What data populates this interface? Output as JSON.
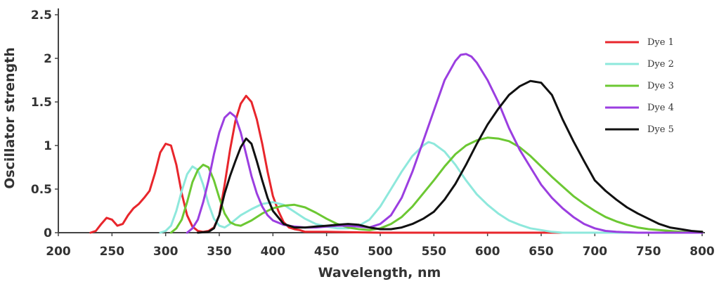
{
  "chart_data": {
    "type": "line",
    "title": "",
    "xlabel": "Wavelength, nm",
    "ylabel": "Oscillator strength",
    "xlim": [
      200,
      800
    ],
    "ylim": [
      0,
      2.5
    ],
    "x_ticks": [
      "200",
      "250",
      "300",
      "350",
      "400",
      "450",
      "500",
      "550",
      "600",
      "650",
      "700",
      "750",
      "800"
    ],
    "y_ticks": [
      "0",
      "0.5",
      "1",
      "1.5",
      "2",
      "2.5"
    ],
    "grid": false,
    "legend_position": "top-right",
    "series": [
      {
        "name": "Dye 1",
        "color": "#e8262c",
        "points": [
          [
            230,
            0.0
          ],
          [
            235,
            0.02
          ],
          [
            240,
            0.1
          ],
          [
            245,
            0.17
          ],
          [
            250,
            0.15
          ],
          [
            255,
            0.08
          ],
          [
            260,
            0.1
          ],
          [
            265,
            0.2
          ],
          [
            270,
            0.28
          ],
          [
            275,
            0.33
          ],
          [
            280,
            0.4
          ],
          [
            285,
            0.48
          ],
          [
            290,
            0.68
          ],
          [
            295,
            0.92
          ],
          [
            300,
            1.02
          ],
          [
            305,
            1.0
          ],
          [
            310,
            0.78
          ],
          [
            315,
            0.45
          ],
          [
            320,
            0.2
          ],
          [
            325,
            0.07
          ],
          [
            330,
            0.02
          ],
          [
            335,
            0.01
          ],
          [
            340,
            0.02
          ],
          [
            345,
            0.06
          ],
          [
            350,
            0.2
          ],
          [
            355,
            0.55
          ],
          [
            360,
            0.95
          ],
          [
            365,
            1.28
          ],
          [
            370,
            1.48
          ],
          [
            375,
            1.57
          ],
          [
            380,
            1.5
          ],
          [
            385,
            1.3
          ],
          [
            390,
            1.02
          ],
          [
            395,
            0.7
          ],
          [
            400,
            0.42
          ],
          [
            405,
            0.25
          ],
          [
            410,
            0.12
          ],
          [
            415,
            0.06
          ],
          [
            420,
            0.04
          ],
          [
            425,
            0.03
          ],
          [
            430,
            0.01
          ],
          [
            450,
            0.01
          ],
          [
            500,
            0.0
          ],
          [
            600,
            0.0
          ],
          [
            700,
            0.0
          ],
          [
            800,
            0.0
          ]
        ]
      },
      {
        "name": "Dye 2",
        "color": "#8ee8dc",
        "points": [
          [
            295,
            0.0
          ],
          [
            300,
            0.02
          ],
          [
            305,
            0.08
          ],
          [
            310,
            0.25
          ],
          [
            315,
            0.48
          ],
          [
            320,
            0.67
          ],
          [
            325,
            0.76
          ],
          [
            330,
            0.72
          ],
          [
            335,
            0.55
          ],
          [
            340,
            0.33
          ],
          [
            345,
            0.16
          ],
          [
            350,
            0.08
          ],
          [
            355,
            0.06
          ],
          [
            360,
            0.1
          ],
          [
            365,
            0.15
          ],
          [
            370,
            0.2
          ],
          [
            380,
            0.27
          ],
          [
            390,
            0.33
          ],
          [
            400,
            0.35
          ],
          [
            410,
            0.32
          ],
          [
            420,
            0.24
          ],
          [
            430,
            0.16
          ],
          [
            440,
            0.1
          ],
          [
            450,
            0.07
          ],
          [
            460,
            0.05
          ],
          [
            470,
            0.05
          ],
          [
            480,
            0.08
          ],
          [
            490,
            0.15
          ],
          [
            500,
            0.3
          ],
          [
            510,
            0.5
          ],
          [
            520,
            0.7
          ],
          [
            530,
            0.88
          ],
          [
            540,
            1.0
          ],
          [
            545,
            1.04
          ],
          [
            550,
            1.02
          ],
          [
            560,
            0.93
          ],
          [
            570,
            0.78
          ],
          [
            580,
            0.6
          ],
          [
            590,
            0.44
          ],
          [
            600,
            0.32
          ],
          [
            610,
            0.22
          ],
          [
            620,
            0.14
          ],
          [
            630,
            0.09
          ],
          [
            640,
            0.05
          ],
          [
            650,
            0.03
          ],
          [
            660,
            0.01
          ],
          [
            670,
            0.0
          ],
          [
            700,
            0.0
          ],
          [
            800,
            0.0
          ]
        ]
      },
      {
        "name": "Dye 3",
        "color": "#6cc833",
        "points": [
          [
            305,
            0.0
          ],
          [
            310,
            0.05
          ],
          [
            315,
            0.15
          ],
          [
            320,
            0.35
          ],
          [
            325,
            0.58
          ],
          [
            330,
            0.72
          ],
          [
            335,
            0.78
          ],
          [
            340,
            0.75
          ],
          [
            345,
            0.6
          ],
          [
            350,
            0.4
          ],
          [
            355,
            0.22
          ],
          [
            360,
            0.12
          ],
          [
            365,
            0.09
          ],
          [
            370,
            0.08
          ],
          [
            380,
            0.14
          ],
          [
            390,
            0.22
          ],
          [
            400,
            0.28
          ],
          [
            410,
            0.31
          ],
          [
            420,
            0.32
          ],
          [
            430,
            0.29
          ],
          [
            440,
            0.23
          ],
          [
            450,
            0.16
          ],
          [
            460,
            0.1
          ],
          [
            470,
            0.06
          ],
          [
            480,
            0.04
          ],
          [
            490,
            0.03
          ],
          [
            500,
            0.05
          ],
          [
            510,
            0.1
          ],
          [
            520,
            0.18
          ],
          [
            530,
            0.3
          ],
          [
            540,
            0.45
          ],
          [
            550,
            0.6
          ],
          [
            560,
            0.76
          ],
          [
            570,
            0.9
          ],
          [
            580,
            1.0
          ],
          [
            590,
            1.06
          ],
          [
            600,
            1.09
          ],
          [
            610,
            1.08
          ],
          [
            620,
            1.05
          ],
          [
            630,
            0.98
          ],
          [
            640,
            0.88
          ],
          [
            650,
            0.76
          ],
          [
            660,
            0.64
          ],
          [
            670,
            0.53
          ],
          [
            680,
            0.42
          ],
          [
            690,
            0.33
          ],
          [
            700,
            0.25
          ],
          [
            710,
            0.18
          ],
          [
            720,
            0.13
          ],
          [
            730,
            0.09
          ],
          [
            740,
            0.06
          ],
          [
            750,
            0.04
          ],
          [
            760,
            0.03
          ],
          [
            770,
            0.02
          ],
          [
            780,
            0.01
          ],
          [
            800,
            0.01
          ]
        ]
      },
      {
        "name": "Dye 4",
        "color": "#9b3ee0",
        "points": [
          [
            320,
            0.0
          ],
          [
            325,
            0.05
          ],
          [
            330,
            0.15
          ],
          [
            335,
            0.35
          ],
          [
            340,
            0.6
          ],
          [
            345,
            0.9
          ],
          [
            350,
            1.15
          ],
          [
            355,
            1.32
          ],
          [
            360,
            1.38
          ],
          [
            365,
            1.33
          ],
          [
            370,
            1.15
          ],
          [
            375,
            0.9
          ],
          [
            380,
            0.65
          ],
          [
            385,
            0.45
          ],
          [
            390,
            0.3
          ],
          [
            395,
            0.2
          ],
          [
            400,
            0.14
          ],
          [
            410,
            0.09
          ],
          [
            420,
            0.07
          ],
          [
            430,
            0.06
          ],
          [
            440,
            0.06
          ],
          [
            450,
            0.07
          ],
          [
            460,
            0.08
          ],
          [
            470,
            0.08
          ],
          [
            480,
            0.07
          ],
          [
            490,
            0.06
          ],
          [
            500,
            0.1
          ],
          [
            510,
            0.2
          ],
          [
            520,
            0.4
          ],
          [
            530,
            0.7
          ],
          [
            540,
            1.05
          ],
          [
            550,
            1.4
          ],
          [
            560,
            1.75
          ],
          [
            570,
            1.97
          ],
          [
            575,
            2.04
          ],
          [
            580,
            2.05
          ],
          [
            585,
            2.02
          ],
          [
            590,
            1.95
          ],
          [
            600,
            1.75
          ],
          [
            610,
            1.5
          ],
          [
            620,
            1.2
          ],
          [
            630,
            0.95
          ],
          [
            640,
            0.75
          ],
          [
            650,
            0.55
          ],
          [
            660,
            0.4
          ],
          [
            670,
            0.28
          ],
          [
            680,
            0.18
          ],
          [
            690,
            0.1
          ],
          [
            700,
            0.05
          ],
          [
            710,
            0.02
          ],
          [
            720,
            0.01
          ],
          [
            740,
            0.0
          ],
          [
            800,
            0.0
          ]
        ]
      },
      {
        "name": "Dye 5",
        "color": "#111111",
        "points": [
          [
            330,
            0.0
          ],
          [
            340,
            0.01
          ],
          [
            345,
            0.05
          ],
          [
            350,
            0.2
          ],
          [
            355,
            0.45
          ],
          [
            360,
            0.65
          ],
          [
            365,
            0.82
          ],
          [
            370,
            0.98
          ],
          [
            375,
            1.08
          ],
          [
            380,
            1.02
          ],
          [
            385,
            0.82
          ],
          [
            390,
            0.6
          ],
          [
            395,
            0.4
          ],
          [
            400,
            0.25
          ],
          [
            410,
            0.1
          ],
          [
            420,
            0.06
          ],
          [
            430,
            0.06
          ],
          [
            440,
            0.07
          ],
          [
            450,
            0.08
          ],
          [
            460,
            0.09
          ],
          [
            470,
            0.1
          ],
          [
            480,
            0.09
          ],
          [
            490,
            0.06
          ],
          [
            500,
            0.04
          ],
          [
            510,
            0.04
          ],
          [
            520,
            0.06
          ],
          [
            530,
            0.1
          ],
          [
            540,
            0.16
          ],
          [
            550,
            0.24
          ],
          [
            560,
            0.38
          ],
          [
            570,
            0.56
          ],
          [
            580,
            0.78
          ],
          [
            590,
            1.02
          ],
          [
            600,
            1.24
          ],
          [
            610,
            1.42
          ],
          [
            620,
            1.58
          ],
          [
            630,
            1.68
          ],
          [
            640,
            1.74
          ],
          [
            650,
            1.72
          ],
          [
            660,
            1.58
          ],
          [
            670,
            1.3
          ],
          [
            680,
            1.05
          ],
          [
            690,
            0.82
          ],
          [
            700,
            0.6
          ],
          [
            710,
            0.48
          ],
          [
            720,
            0.38
          ],
          [
            730,
            0.29
          ],
          [
            740,
            0.22
          ],
          [
            750,
            0.16
          ],
          [
            760,
            0.1
          ],
          [
            770,
            0.06
          ],
          [
            780,
            0.04
          ],
          [
            790,
            0.02
          ],
          [
            800,
            0.01
          ]
        ]
      }
    ]
  }
}
